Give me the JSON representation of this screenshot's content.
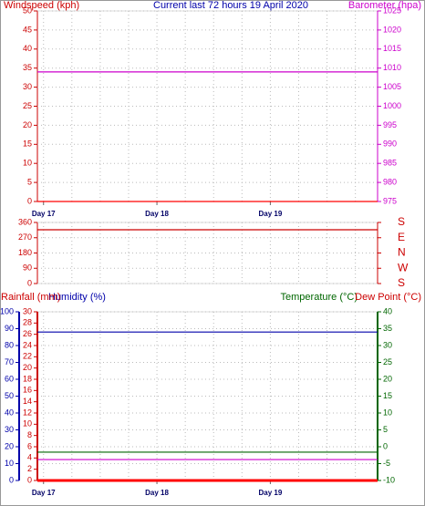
{
  "chart_data": [
    {
      "type": "line",
      "title": "Current last 72 hours 19 April 2020",
      "title_color": "#0000aa",
      "x": [
        0,
        72
      ],
      "xlim": [
        0,
        72
      ],
      "xticks": [
        {
          "value": 1.3,
          "label": "Day 17"
        },
        {
          "value": 25.3,
          "label": "Day 18"
        },
        {
          "value": 49.3,
          "label": "Day 19"
        }
      ],
      "grid": true,
      "axes": [
        {
          "label": "Windspeed (kph)",
          "color": "#cc0000",
          "side": "left",
          "lim": [
            0,
            50
          ],
          "ticks": [
            0,
            5,
            10,
            15,
            20,
            25,
            30,
            35,
            40,
            45,
            50
          ]
        },
        {
          "label": "Barometer (hpa)",
          "color": "#cc00cc",
          "side": "right",
          "lim": [
            975,
            1025
          ],
          "ticks": [
            975,
            980,
            985,
            990,
            995,
            1000,
            1005,
            1010,
            1015,
            1020,
            1025
          ]
        }
      ],
      "series": [
        {
          "color": "#ff0000",
          "axis": 0,
          "values": [
            0,
            0
          ]
        },
        {
          "color": "#cc00cc",
          "axis": 1,
          "values": [
            1009,
            1009
          ]
        }
      ]
    },
    {
      "type": "line",
      "x": [
        0,
        72
      ],
      "xlim": [
        0,
        72
      ],
      "grid": true,
      "axes": [
        {
          "color": "#cc0000",
          "side": "left",
          "lim": [
            0,
            360
          ],
          "ticks": [
            0,
            90,
            180,
            270,
            360
          ]
        },
        {
          "color": "#cc0000",
          "side": "right",
          "lim": [
            0,
            360
          ],
          "ticks": [
            {
              "value": 0,
              "label": "S"
            },
            {
              "value": 90,
              "label": "W"
            },
            {
              "value": 180,
              "label": "N"
            },
            {
              "value": 270,
              "label": "E"
            },
            {
              "value": 360,
              "label": "S"
            }
          ]
        }
      ],
      "series": [
        {
          "color": "#cc0000",
          "axis": 0,
          "values": [
            317,
            317
          ]
        }
      ]
    },
    {
      "type": "line",
      "x": [
        0,
        72
      ],
      "xlim": [
        0,
        72
      ],
      "xticks": [
        {
          "value": 1.3,
          "label": "Day 17"
        },
        {
          "value": 25.3,
          "label": "Day 18"
        },
        {
          "value": 49.3,
          "label": "Day 19"
        }
      ],
      "grid": true,
      "axes": [
        {
          "label": "Humidity (%)",
          "color": "#0000aa",
          "side": "left",
          "lim": [
            0,
            100
          ],
          "ticks": [
            0,
            10,
            20,
            30,
            40,
            50,
            60,
            70,
            80,
            90,
            100
          ]
        },
        {
          "label": "Rainfall (mm)",
          "color": "#cc0000",
          "side": "left",
          "lim": [
            0,
            30
          ],
          "ticks": [
            0,
            2,
            4,
            6,
            8,
            10,
            12,
            14,
            16,
            18,
            20,
            22,
            24,
            26,
            28,
            30
          ]
        },
        {
          "label": "Temperature (°C)",
          "color": "#006600",
          "side": "right",
          "lim": [
            -10,
            40
          ],
          "ticks": [
            -10,
            -5,
            0,
            5,
            10,
            15,
            20,
            25,
            30,
            35,
            40
          ]
        },
        {
          "label": "Dew Point (°C)",
          "color": "#cc0000",
          "side": "right",
          "lim": [
            -10,
            40
          ]
        }
      ],
      "series": [
        {
          "color": "#0000aa",
          "axis": 0,
          "values": [
            88,
            88
          ]
        },
        {
          "color": "#ff0000",
          "axis": 1,
          "values": [
            0,
            0
          ]
        },
        {
          "color": "#006600",
          "axis": 2,
          "values": [
            -1.6,
            -1.6
          ]
        },
        {
          "color": "#cc00cc",
          "axis": 3,
          "values": [
            -3.8,
            -3.8
          ]
        }
      ]
    }
  ]
}
